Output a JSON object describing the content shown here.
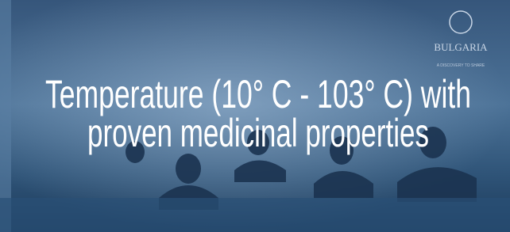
{
  "caption": {
    "line1": "Temperature (10° C - 103° C) with",
    "line2": "proven medicinal properties"
  },
  "logo": {
    "name": "BULGARIA",
    "tagline": "A DISCOVERY TO SHARE"
  }
}
